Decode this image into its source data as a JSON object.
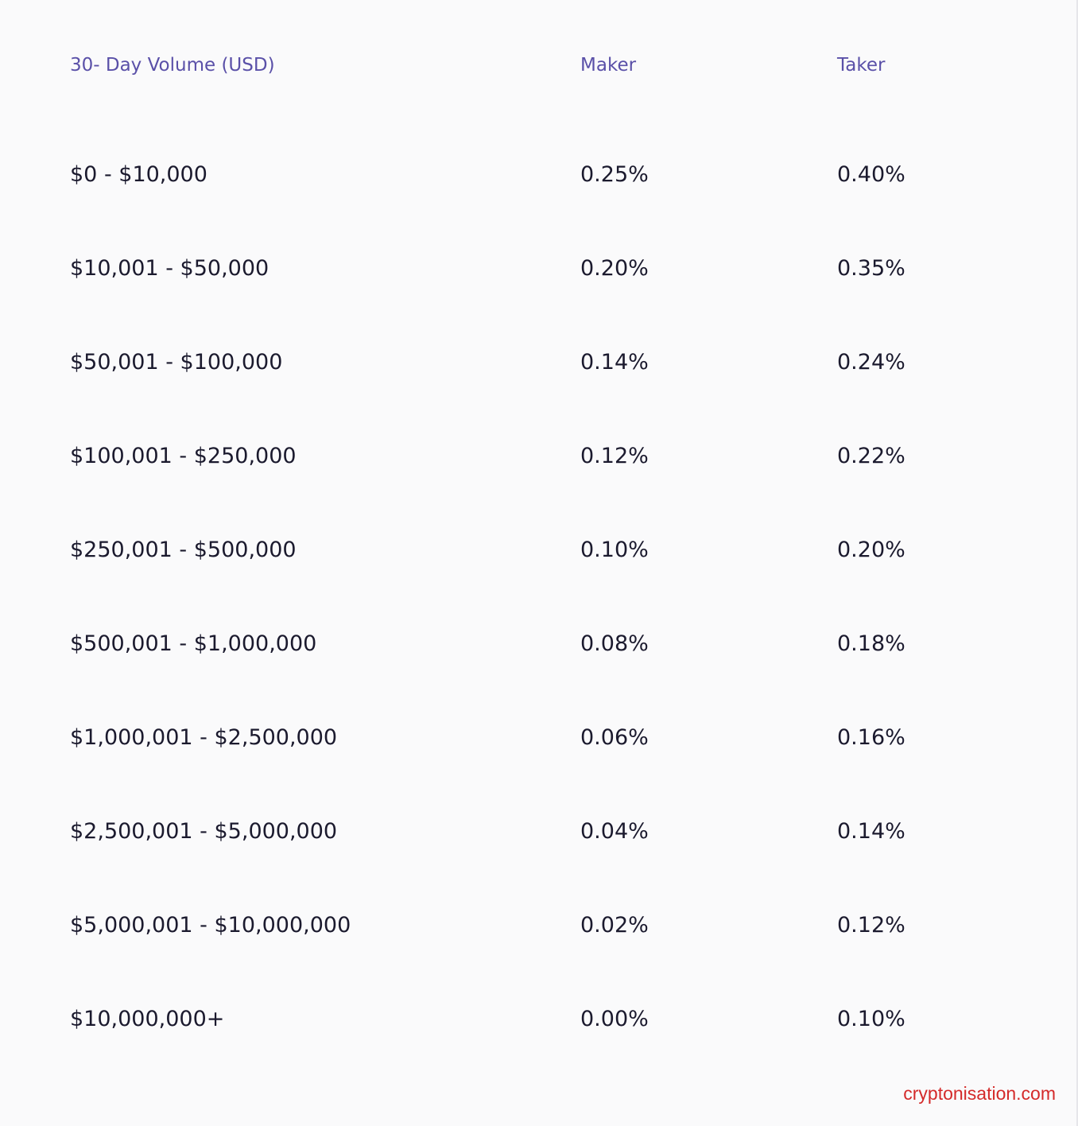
{
  "table": {
    "headers": {
      "volume": "30- Day Volume (USD)",
      "maker": "Maker",
      "taker": "Taker"
    },
    "rows": [
      {
        "volume": "$0 - $10,000",
        "maker": "0.25%",
        "taker": "0.40%"
      },
      {
        "volume": "$10,001 - $50,000",
        "maker": "0.20%",
        "taker": "0.35%"
      },
      {
        "volume": "$50,001 - $100,000",
        "maker": "0.14%",
        "taker": "0.24%"
      },
      {
        "volume": "$100,001 - $250,000",
        "maker": "0.12%",
        "taker": "0.22%"
      },
      {
        "volume": "$250,001 - $500,000",
        "maker": "0.10%",
        "taker": "0.20%"
      },
      {
        "volume": "$500,001 - $1,000,000",
        "maker": "0.08%",
        "taker": "0.18%"
      },
      {
        "volume": "$1,000,001 - $2,500,000",
        "maker": "0.06%",
        "taker": "0.16%"
      },
      {
        "volume": "$2,500,001 - $5,000,000",
        "maker": "0.04%",
        "taker": "0.14%"
      },
      {
        "volume": "$5,000,001 - $10,000,000",
        "maker": "0.02%",
        "taker": "0.12%"
      },
      {
        "volume": "$10,000,000+",
        "maker": "0.00%",
        "taker": "0.10%"
      }
    ]
  },
  "watermark": "cryptonisation.com",
  "colors": {
    "background": "#fafafb",
    "header_text": "#5a50a8",
    "body_text": "#1b1a2e",
    "watermark": "#d42a2a"
  }
}
